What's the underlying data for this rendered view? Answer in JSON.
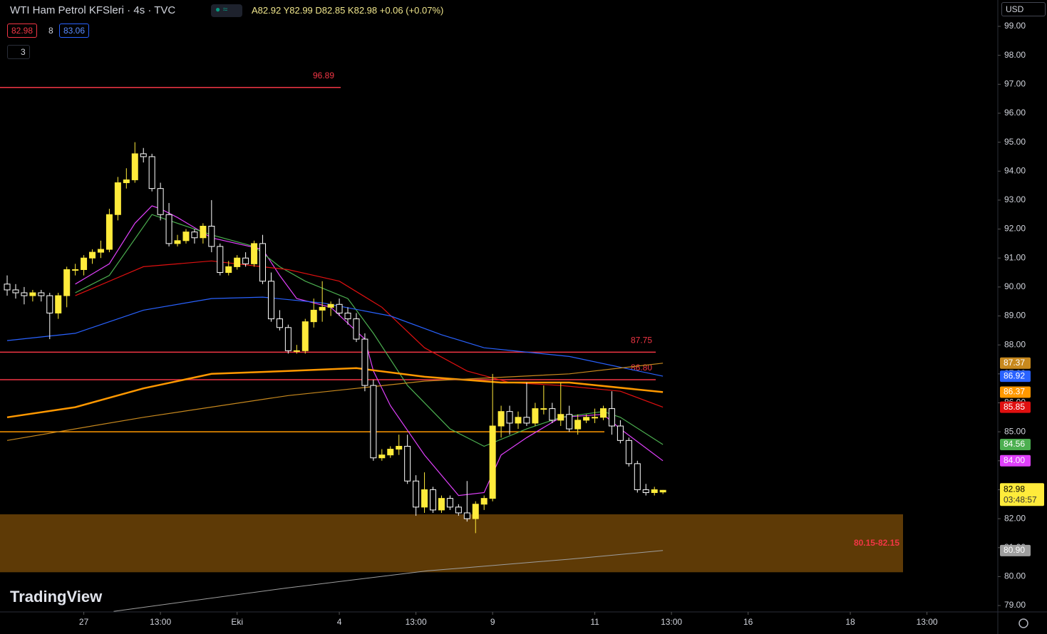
{
  "header": {
    "symbol": "WTI Ham Petrol KFSleri · 4s · TVC",
    "ohlc": "A82.92 Y82.99 D82.85 K82.98 +0.06 (+0.07%)",
    "sell": "82.98",
    "spread": "8",
    "buy": "83.06",
    "indicators": "3",
    "currency": "USD",
    "brand": "TradingView"
  },
  "chart_data": {
    "type": "candlestick",
    "open": [
      90.1,
      89.9,
      89.8,
      89.7,
      89.8,
      89.7,
      89.1,
      89.7,
      90.6,
      90.6,
      91.0,
      91.2,
      91.3,
      92.5,
      93.6,
      93.7,
      94.6,
      94.5,
      93.4,
      92.5,
      91.5,
      91.6,
      91.9,
      91.7,
      92.1,
      91.4,
      90.5,
      90.7,
      91.0,
      90.8,
      91.5,
      90.2,
      88.9,
      88.6,
      87.8,
      87.8,
      88.8,
      89.2,
      89.3,
      89.4,
      89.1,
      88.9,
      88.2,
      86.6,
      84.1,
      84.2,
      84.4,
      84.5,
      83.3,
      82.4,
      83.0,
      82.3,
      82.7,
      82.4,
      82.2,
      82.0,
      82.5,
      82.7,
      85.2,
      85.7,
      85.3,
      85.5,
      85.3,
      85.8,
      85.8,
      85.4,
      85.6,
      85.1,
      85.4,
      85.5,
      85.5,
      85.8,
      85.2,
      84.7,
      83.9,
      83.0,
      82.9,
      82.92
    ],
    "high": [
      90.4,
      90.1,
      90.0,
      89.9,
      89.9,
      89.8,
      89.8,
      90.7,
      90.8,
      91.1,
      91.3,
      91.6,
      92.7,
      93.8,
      94.1,
      95.0,
      94.8,
      94.6,
      93.6,
      92.9,
      91.8,
      92.0,
      92.0,
      92.2,
      93.0,
      91.5,
      90.9,
      91.1,
      91.2,
      91.6,
      91.8,
      90.5,
      89.2,
      88.7,
      88.0,
      88.9,
      89.6,
      90.2,
      89.5,
      89.6,
      89.3,
      89.1,
      88.4,
      86.8,
      84.4,
      84.5,
      84.9,
      84.9,
      83.5,
      83.6,
      83.1,
      82.8,
      82.8,
      82.5,
      83.3,
      82.6,
      82.8,
      87.0,
      85.9,
      85.9,
      85.7,
      86.7,
      86.0,
      86.6,
      86.0,
      86.7,
      85.9,
      85.6,
      85.6,
      85.8,
      85.9,
      86.4,
      85.4,
      84.8,
      84.0,
      83.2,
      83.1,
      82.99
    ],
    "low": [
      89.7,
      89.6,
      89.4,
      89.5,
      89.5,
      88.2,
      88.9,
      89.3,
      90.4,
      90.4,
      90.8,
      91.0,
      91.2,
      92.3,
      93.4,
      93.6,
      94.3,
      93.3,
      92.3,
      91.4,
      91.4,
      91.5,
      91.5,
      91.5,
      91.2,
      90.4,
      90.4,
      90.6,
      90.7,
      90.7,
      90.1,
      88.8,
      88.5,
      87.7,
      87.7,
      87.7,
      88.6,
      88.8,
      89.0,
      89.0,
      88.7,
      88.1,
      86.4,
      84.0,
      84.0,
      84.1,
      84.2,
      83.2,
      82.1,
      82.2,
      82.2,
      82.2,
      82.3,
      82.1,
      81.9,
      81.5,
      82.3,
      82.6,
      84.8,
      84.9,
      85.1,
      85.2,
      85.2,
      85.6,
      85.3,
      85.2,
      85.0,
      84.9,
      85.3,
      85.3,
      85.4,
      84.9,
      84.6,
      83.8,
      82.9,
      82.8,
      82.8,
      82.85
    ],
    "close": [
      89.9,
      89.8,
      89.7,
      89.8,
      89.7,
      89.1,
      89.7,
      90.6,
      90.6,
      91.0,
      91.2,
      91.3,
      92.5,
      93.6,
      93.7,
      94.6,
      94.5,
      93.4,
      92.5,
      91.5,
      91.6,
      91.9,
      91.7,
      92.1,
      91.4,
      90.5,
      90.7,
      91.0,
      90.8,
      91.5,
      90.2,
      88.9,
      88.6,
      87.8,
      87.8,
      88.8,
      89.2,
      89.3,
      89.4,
      89.1,
      88.9,
      88.2,
      86.6,
      84.1,
      84.2,
      84.4,
      84.5,
      83.3,
      82.4,
      83.0,
      82.3,
      82.7,
      82.4,
      82.2,
      82.0,
      82.5,
      82.7,
      85.2,
      85.7,
      85.3,
      85.5,
      85.3,
      85.8,
      85.8,
      85.4,
      85.6,
      85.1,
      85.4,
      85.5,
      85.5,
      85.8,
      85.2,
      84.7,
      83.9,
      83.0,
      82.9,
      83.0,
      82.98
    ],
    "up_color": "#ffeb3b",
    "down_color": "#ffffff",
    "countdown": "03:48:57",
    "overlays": [
      {
        "color": "#e040fb",
        "x": [
          8,
          12,
          15,
          17,
          18,
          20,
          24,
          30,
          32,
          34,
          38,
          42,
          43,
          45,
          49,
          53,
          56,
          58,
          61,
          65,
          70,
          72,
          77
        ],
        "values": [
          90.1,
          90.8,
          92.2,
          92.8,
          92.7,
          92.4,
          91.7,
          91.3,
          90.4,
          89.6,
          89.3,
          88.2,
          87.1,
          85.9,
          84.2,
          82.8,
          82.9,
          84.2,
          84.8,
          85.5,
          85.6,
          85.1,
          84.0
        ],
        "end_label": "84.00",
        "width": 1.2
      },
      {
        "color": "#4caf50",
        "x": [
          8,
          12,
          17,
          20,
          24,
          29,
          32,
          35,
          40,
          43,
          47,
          52,
          56,
          61,
          65,
          70,
          72,
          77
        ],
        "values": [
          89.8,
          90.4,
          92.5,
          92.2,
          91.8,
          91.4,
          90.7,
          90.2,
          89.6,
          88.4,
          86.6,
          85.1,
          84.5,
          85.1,
          85.5,
          85.7,
          85.5,
          84.56
        ],
        "end_label": "84.56",
        "width": 1.2
      },
      {
        "color": "#e01010",
        "x": [
          8,
          16,
          24,
          33,
          39,
          44,
          49,
          54,
          59,
          65,
          72,
          77
        ],
        "values": [
          89.7,
          90.7,
          90.9,
          90.6,
          90.2,
          89.3,
          87.9,
          87.1,
          86.7,
          86.6,
          86.4,
          85.85
        ],
        "end_label": "85.85",
        "width": 1.2
      },
      {
        "color": "#2962ff",
        "x": [
          0,
          8,
          16,
          24,
          30,
          37,
          45,
          51,
          56,
          66,
          77
        ],
        "values": [
          88.15,
          88.4,
          89.2,
          89.6,
          89.65,
          89.45,
          89.0,
          88.35,
          87.9,
          87.6,
          86.92
        ],
        "end_label": "86.92",
        "width": 1.2
      },
      {
        "color": "#ff9800",
        "x": [
          0,
          8,
          16,
          24,
          33,
          41,
          49,
          58,
          66,
          77
        ],
        "values": [
          85.5,
          85.85,
          86.5,
          87.0,
          87.1,
          87.2,
          86.9,
          86.7,
          86.7,
          86.37
        ],
        "end_label": "86.37",
        "width": 2.5
      },
      {
        "color": "#c8891e",
        "x": [
          0,
          16,
          33,
          41,
          49,
          66,
          77
        ],
        "values": [
          84.7,
          85.5,
          86.25,
          86.5,
          86.75,
          87.0,
          87.37
        ],
        "end_label": "87.37",
        "width": 1.2
      },
      {
        "color": "#9e9e9e",
        "x": [
          12.5,
          32.6,
          49.4,
          66,
          77
        ],
        "values": [
          78.8,
          79.6,
          80.2,
          80.6,
          80.9
        ],
        "end_label": "80.90",
        "width": 1
      }
    ],
    "hlines": [
      {
        "value": 96.89,
        "color": "#f23645"
      },
      {
        "value": 87.75,
        "color": "#f23645"
      },
      {
        "value": {
          "value": 86.8,
          "label": "86.80"
        },
        "color": "#f23645"
      },
      {
        "value": 85,
        "color": "#ff9800"
      }
    ],
    "zone": {
      "low": 80.15,
      "high": 82.15,
      "label": "80.15-82.15",
      "color": "#5e3a06"
    },
    "xlim": [
      -0.84,
      116.32
    ],
    "xticks": [
      {
        "value": 9,
        "label": "27"
      },
      {
        "value": 18,
        "label": "13:00"
      },
      {
        "value": 27,
        "label": "Eki"
      },
      {
        "value": 39,
        "label": "4"
      },
      {
        "value": 48,
        "label": "13:00"
      },
      {
        "value": 57,
        "label": "9"
      },
      {
        "value": 69,
        "label": "11"
      },
      {
        "value": 78,
        "label": "13:00"
      },
      {
        "value": 87,
        "label": "16"
      },
      {
        "value": 99,
        "label": "18"
      },
      {
        "value": 108,
        "label": "13:00"
      }
    ],
    "ylim": [
      78.78,
      99.91
    ],
    "yticks": [
      {
        "value": 79,
        "label": "79.00"
      },
      {
        "value": 80,
        "label": "80.00"
      },
      {
        "value": 81,
        "label": "81.00"
      },
      {
        "value": 82,
        "label": "82.00"
      },
      {
        "value": 83,
        "label": "83.00"
      },
      {
        "value": 84,
        "label": "84.00"
      },
      {
        "value": 85,
        "label": "85.00"
      },
      {
        "value": 86,
        "label": "86.00"
      },
      {
        "value": 87,
        "label": "87.00"
      },
      {
        "value": 88,
        "label": "88.00"
      },
      {
        "value": 89,
        "label": "89.00"
      },
      {
        "value": 90,
        "label": "90.00"
      },
      {
        "value": 91,
        "label": "91.00"
      },
      {
        "value": 92,
        "label": "92.00"
      },
      {
        "value": 93,
        "label": "93.00"
      },
      {
        "value": 94,
        "label": "94.00"
      },
      {
        "value": 95,
        "label": "95.00"
      },
      {
        "value": 96,
        "label": "96.00"
      },
      {
        "value": 97,
        "label": "97.00"
      },
      {
        "value": 98,
        "label": "98.00"
      },
      {
        "value": 99,
        "label": "99.00"
      }
    ]
  }
}
